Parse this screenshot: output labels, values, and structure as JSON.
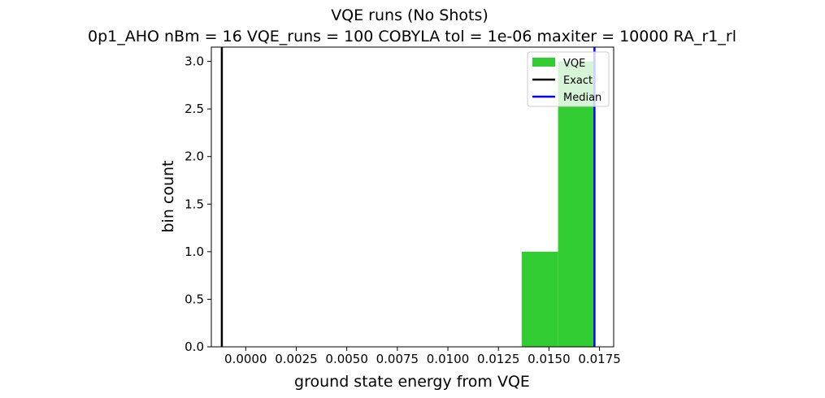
{
  "chart_data": {
    "type": "bar",
    "title": "VQE runs (No Shots)",
    "subtitle": "0p1_AHO    nBm = 16    VQE_runs = 100    COBYLA    tol = 1e-06    maxiter = 10000    RA_r1_rl",
    "xlabel": "ground state energy from VQE",
    "ylabel": "bin count",
    "xlim": [
      -0.0017,
      0.0182
    ],
    "ylim": [
      0,
      3.15
    ],
    "x_ticks": [
      0.0,
      0.0025,
      0.005,
      0.0075,
      0.01,
      0.0125,
      0.015,
      0.0175
    ],
    "x_tick_labels": [
      "0.0000",
      "0.0025",
      "0.0050",
      "0.0075",
      "0.0100",
      "0.0125",
      "0.0150",
      "0.0175"
    ],
    "y_ticks": [
      0.0,
      0.5,
      1.0,
      1.5,
      2.0,
      2.5,
      3.0
    ],
    "y_tick_labels": [
      "0.0",
      "0.5",
      "1.0",
      "1.5",
      "2.0",
      "2.5",
      "3.0"
    ],
    "grid": false,
    "legend_position": "top-right",
    "histogram": {
      "name": "VQE",
      "color": "#32cd32",
      "bins": [
        {
          "x0": 0.01365,
          "x1": 0.01545,
          "count": 1
        },
        {
          "x0": 0.01545,
          "x1": 0.01725,
          "count": 3
        }
      ]
    },
    "lines": [
      {
        "name": "Exact",
        "x": -0.00118,
        "color": "#000000"
      },
      {
        "name": "Median",
        "x": 0.01725,
        "color": "#0000ff"
      }
    ],
    "legend": [
      {
        "label": "VQE",
        "kind": "patch",
        "color": "#32cd32"
      },
      {
        "label": "Exact",
        "kind": "line",
        "color": "#000000"
      },
      {
        "label": "Median",
        "kind": "line",
        "color": "#0000ff"
      }
    ]
  }
}
